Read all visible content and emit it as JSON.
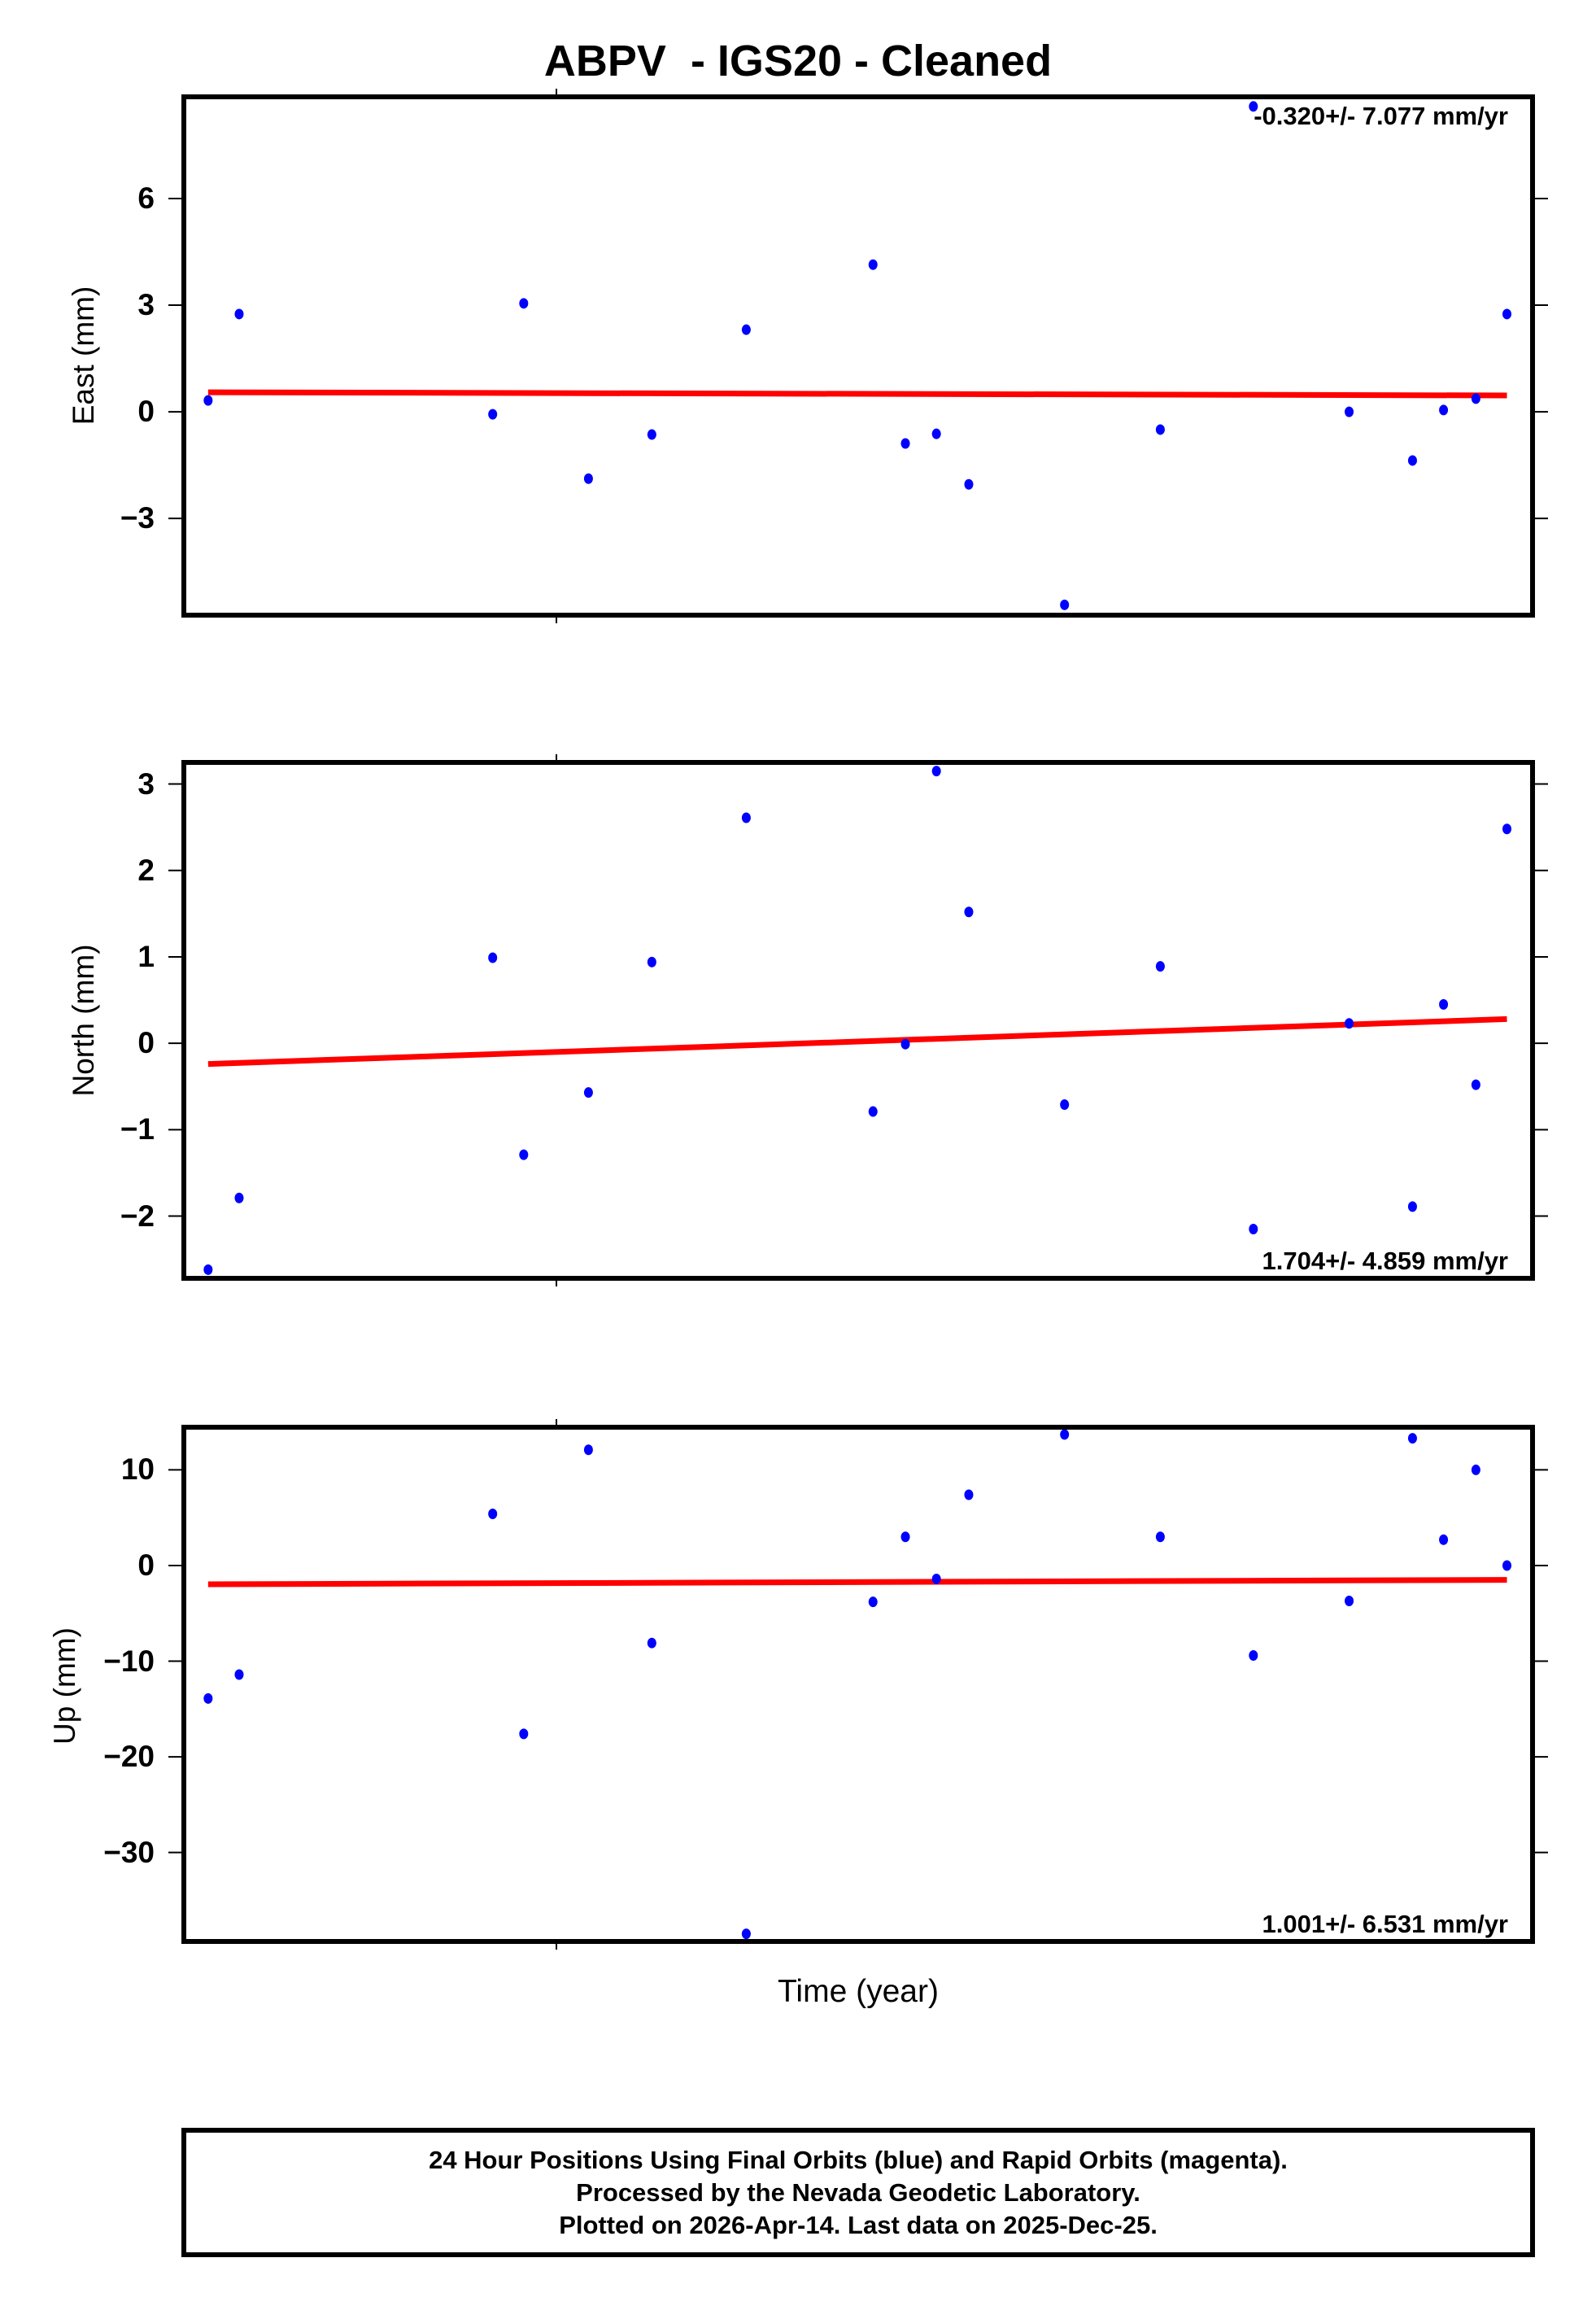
{
  "figure": {
    "title": "ABPV  - IGS20 - Cleaned",
    "xlabel": "Time (year)",
    "footer": {
      "line1": "24 Hour Positions Using Final Orbits (blue) and Rapid Orbits (magenta).",
      "line2": "Processed by the Nevada Geodetic Laboratory.",
      "line3": "Plotted on 2026-Apr-14. Last data on 2025-Dec-25."
    },
    "colors": {
      "points": "#0000ff",
      "trend": "#ff0000",
      "frame": "#000000"
    }
  },
  "panels": [
    {
      "id": "east",
      "ylabel": "East (mm)",
      "rate_text": "-0.320+/- 7.077 mm/yr",
      "rate_position": "top-right",
      "yticks": [
        6,
        3,
        0,
        -3
      ],
      "ytick_labels": [
        "6",
        "3",
        "0",
        "−3"
      ]
    },
    {
      "id": "north",
      "ylabel": "North (mm)",
      "rate_text": "1.704+/- 4.859 mm/yr",
      "rate_position": "bottom-right",
      "yticks": [
        3,
        2,
        1,
        0,
        -1,
        -2
      ],
      "ytick_labels": [
        "3",
        "2",
        "1",
        "0",
        "−1",
        "−2"
      ]
    },
    {
      "id": "up",
      "ylabel": "Up (mm)",
      "rate_text": "1.001+/- 6.531 mm/yr",
      "rate_position": "bottom-right",
      "yticks": [
        10,
        0,
        -10,
        -20,
        -30
      ],
      "ytick_labels": [
        "10",
        "0",
        "−10",
        "−20",
        "−30"
      ]
    }
  ],
  "chart_data": [
    {
      "type": "scatter",
      "title": "ABPV  - IGS20 - Cleaned",
      "xlabel": "Time (year)",
      "ylabel": "East (mm)",
      "ylim": [
        -5.72,
        8.86
      ],
      "x_relative": [
        0.018,
        0.041,
        0.229,
        0.252,
        0.3,
        0.347,
        0.417,
        0.511,
        0.535,
        0.558,
        0.582,
        0.653,
        0.724,
        0.793,
        0.864,
        0.911,
        0.934,
        0.958,
        0.981
      ],
      "series": [
        {
          "name": "Final Orbits (blue)",
          "values": [
            0.32,
            2.75,
            -0.07,
            3.05,
            -1.88,
            -0.64,
            2.31,
            4.14,
            -0.89,
            -0.62,
            -2.04,
            -5.43,
            -0.5,
            8.59,
            0.0,
            -1.37,
            0.05,
            0.37,
            2.75
          ]
        },
        {
          "name": "Linear trend",
          "values_at_ends": [
            0.55,
            0.46
          ]
        }
      ],
      "annotation": "-0.320+/- 7.077 mm/yr",
      "grid": false
    },
    {
      "type": "scatter",
      "ylabel": "North (mm)",
      "ylim": [
        -2.72,
        3.25
      ],
      "x_relative": [
        0.018,
        0.041,
        0.229,
        0.252,
        0.3,
        0.347,
        0.417,
        0.511,
        0.535,
        0.558,
        0.582,
        0.653,
        0.724,
        0.793,
        0.864,
        0.911,
        0.934,
        0.958,
        0.981
      ],
      "series": [
        {
          "name": "Final Orbits (blue)",
          "values": [
            -2.62,
            -1.79,
            0.99,
            -1.29,
            -0.57,
            0.94,
            2.61,
            -0.79,
            -0.01,
            3.15,
            1.52,
            -0.71,
            0.89,
            -2.15,
            0.23,
            -1.89,
            0.45,
            -0.48,
            2.48
          ]
        },
        {
          "name": "Linear trend",
          "values_at_ends": [
            -0.24,
            0.28
          ]
        }
      ],
      "annotation": "1.704+/- 4.859 mm/yr",
      "grid": false
    },
    {
      "type": "scatter",
      "ylabel": "Up (mm)",
      "ylim": [
        -39.3,
        14.46
      ],
      "x_relative": [
        0.018,
        0.041,
        0.229,
        0.252,
        0.3,
        0.347,
        0.417,
        0.511,
        0.535,
        0.558,
        0.582,
        0.653,
        0.724,
        0.793,
        0.864,
        0.911,
        0.934,
        0.958,
        0.981
      ],
      "series": [
        {
          "name": "Final Orbits (blue)",
          "values": [
            -13.9,
            -11.4,
            5.4,
            -17.6,
            12.1,
            -8.1,
            -38.5,
            -3.8,
            3.0,
            -1.4,
            7.4,
            13.7,
            3.0,
            -9.4,
            -3.7,
            13.3,
            2.7,
            10.0,
            0.0
          ]
        },
        {
          "name": "Linear trend",
          "values_at_ends": [
            -1.96,
            -1.5
          ]
        }
      ],
      "annotation": "1.001+/- 6.531 mm/yr",
      "grid": false
    }
  ]
}
